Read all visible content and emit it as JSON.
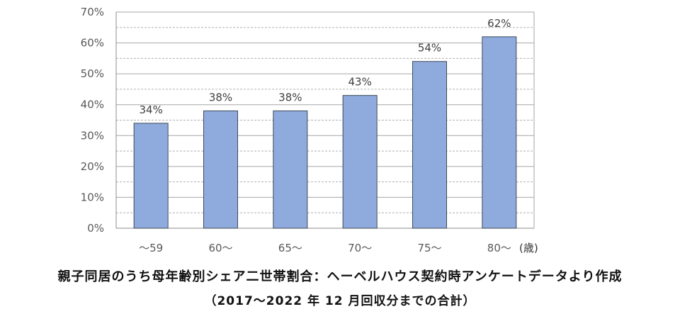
{
  "chart_data": {
    "type": "bar",
    "categories": [
      "～59",
      "60～",
      "65～",
      "70～",
      "75～",
      "80～"
    ],
    "values": [
      34,
      38,
      38,
      43,
      54,
      62
    ],
    "data_labels": [
      "34%",
      "38%",
      "38%",
      "43%",
      "54%",
      "62%"
    ],
    "ylim": [
      0,
      70
    ],
    "yticks": [
      "0%",
      "10%",
      "20%",
      "30%",
      "40%",
      "50%",
      "60%",
      "70%"
    ],
    "x_unit": "(歳)",
    "grid": true,
    "bar_color": "#8faadc",
    "bar_edge_color": "#3f4a5a"
  },
  "caption": {
    "title": "親子同居のうち母年齢別シェア二世帯割合：ヘーベルハウス契約時アンケートデータより作成",
    "subtitle": "（2017～2022 年 12 月回収分までの合計）"
  }
}
